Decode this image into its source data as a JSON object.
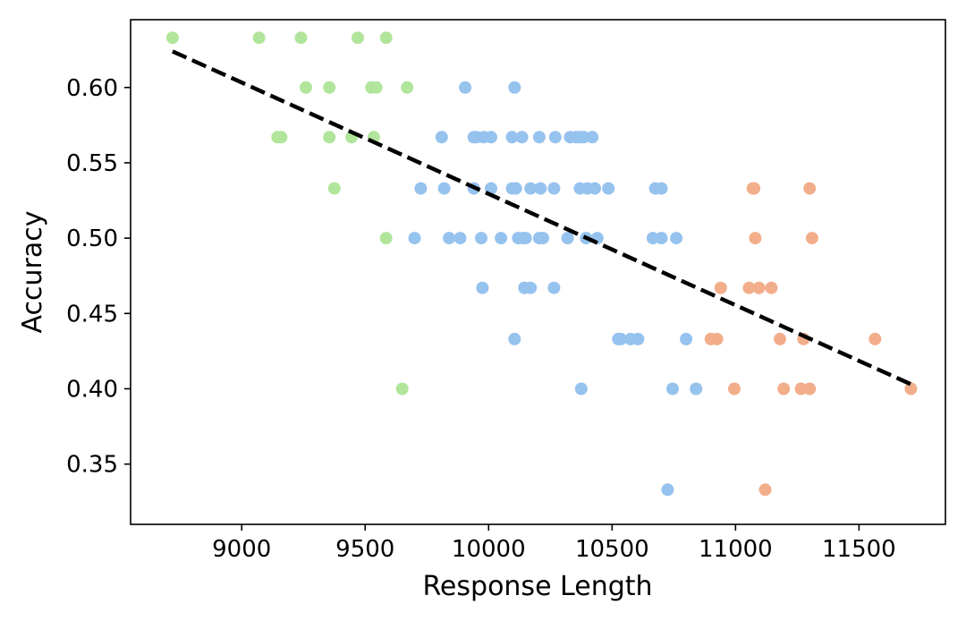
{
  "chart_data": {
    "type": "scatter",
    "title": "",
    "xlabel": "Response Length",
    "ylabel": "Accuracy",
    "xlim": [
      8550,
      11850
    ],
    "ylim": [
      0.31,
      0.645
    ],
    "x_ticks": [
      9000,
      9500,
      10000,
      10500,
      11000,
      11500
    ],
    "y_ticks": [
      0.35,
      0.4,
      0.45,
      0.5,
      0.55,
      0.6
    ],
    "grid": false,
    "legend": "none",
    "series": [
      {
        "color": "#b1e59b",
        "points": [
          [
            8720,
            0.633
          ],
          [
            9070,
            0.633
          ],
          [
            9240,
            0.633
          ],
          [
            9470,
            0.633
          ],
          [
            9585,
            0.633
          ],
          [
            9260,
            0.6
          ],
          [
            9355,
            0.6
          ],
          [
            9525,
            0.6
          ],
          [
            9545,
            0.6
          ],
          [
            9670,
            0.6
          ],
          [
            9145,
            0.567
          ],
          [
            9160,
            0.567
          ],
          [
            9355,
            0.567
          ],
          [
            9445,
            0.567
          ],
          [
            9535,
            0.567
          ],
          [
            9375,
            0.533
          ],
          [
            9585,
            0.5
          ],
          [
            9650,
            0.4
          ]
        ]
      },
      {
        "color": "#96c2ee",
        "points": [
          [
            9905,
            0.6
          ],
          [
            10105,
            0.6
          ],
          [
            9810,
            0.567
          ],
          [
            9940,
            0.567
          ],
          [
            9950,
            0.567
          ],
          [
            9980,
            0.567
          ],
          [
            10010,
            0.567
          ],
          [
            10095,
            0.567
          ],
          [
            10135,
            0.567
          ],
          [
            10205,
            0.567
          ],
          [
            10270,
            0.567
          ],
          [
            10330,
            0.567
          ],
          [
            10355,
            0.567
          ],
          [
            10375,
            0.567
          ],
          [
            10385,
            0.567
          ],
          [
            10420,
            0.567
          ],
          [
            9725,
            0.533
          ],
          [
            9820,
            0.533
          ],
          [
            9940,
            0.533
          ],
          [
            10010,
            0.533
          ],
          [
            10095,
            0.533
          ],
          [
            10110,
            0.533
          ],
          [
            10170,
            0.533
          ],
          [
            10210,
            0.533
          ],
          [
            10265,
            0.533
          ],
          [
            10370,
            0.533
          ],
          [
            10400,
            0.533
          ],
          [
            10430,
            0.533
          ],
          [
            10485,
            0.533
          ],
          [
            10675,
            0.533
          ],
          [
            10700,
            0.533
          ],
          [
            9700,
            0.5
          ],
          [
            9840,
            0.5
          ],
          [
            9885,
            0.5
          ],
          [
            9970,
            0.5
          ],
          [
            10050,
            0.5
          ],
          [
            10120,
            0.5
          ],
          [
            10140,
            0.5
          ],
          [
            10150,
            0.5
          ],
          [
            10205,
            0.5
          ],
          [
            10220,
            0.5
          ],
          [
            10320,
            0.5
          ],
          [
            10395,
            0.5
          ],
          [
            10440,
            0.5
          ],
          [
            10665,
            0.5
          ],
          [
            10700,
            0.5
          ],
          [
            10760,
            0.5
          ],
          [
            9975,
            0.467
          ],
          [
            10145,
            0.467
          ],
          [
            10170,
            0.467
          ],
          [
            10265,
            0.467
          ],
          [
            10105,
            0.433
          ],
          [
            10525,
            0.433
          ],
          [
            10535,
            0.433
          ],
          [
            10575,
            0.433
          ],
          [
            10605,
            0.433
          ],
          [
            10800,
            0.433
          ],
          [
            10375,
            0.4
          ],
          [
            10745,
            0.4
          ],
          [
            10840,
            0.4
          ],
          [
            10725,
            0.333
          ]
        ]
      },
      {
        "color": "#f2ae8b",
        "points": [
          [
            11070,
            0.533
          ],
          [
            11075,
            0.533
          ],
          [
            11300,
            0.533
          ],
          [
            11080,
            0.5
          ],
          [
            11310,
            0.5
          ],
          [
            10940,
            0.467
          ],
          [
            11055,
            0.467
          ],
          [
            11095,
            0.467
          ],
          [
            11145,
            0.467
          ],
          [
            10900,
            0.433
          ],
          [
            10925,
            0.433
          ],
          [
            11180,
            0.433
          ],
          [
            11275,
            0.433
          ],
          [
            11565,
            0.433
          ],
          [
            10995,
            0.4
          ],
          [
            11195,
            0.4
          ],
          [
            11265,
            0.4
          ],
          [
            11300,
            0.4
          ],
          [
            11710,
            0.4
          ],
          [
            11120,
            0.333
          ]
        ]
      }
    ],
    "trend_line": {
      "style": "dashed",
      "color": "#000000",
      "x": [
        8720,
        11710
      ],
      "y": [
        0.624,
        0.403
      ]
    }
  }
}
